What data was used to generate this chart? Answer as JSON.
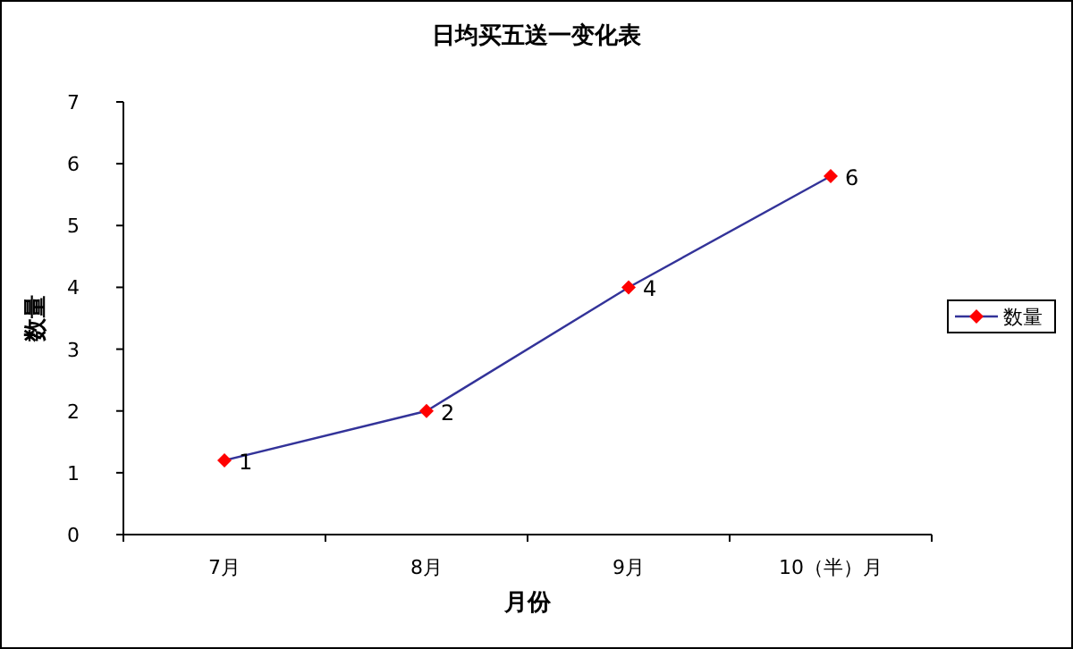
{
  "chart_data": {
    "type": "line",
    "title": "日均买五送一变化表",
    "xlabel": "月份",
    "ylabel": "数量",
    "categories": [
      "7月",
      "8月",
      "9月",
      "10（半）月"
    ],
    "series": [
      {
        "name": "数量",
        "color": "#333399",
        "colors": [
          "#ff0000",
          "#ff0000",
          "#ff0000",
          "#ff0000"
        ],
        "values": [
          1.2,
          2,
          4,
          5.8
        ],
        "value_labels": [
          "1",
          "2",
          "4",
          "6"
        ]
      }
    ],
    "ylim": [
      0,
      7
    ],
    "yticks": [
      0,
      1,
      2,
      3,
      4,
      5,
      6,
      7
    ],
    "grid": false,
    "legend": "right",
    "marker": "diamond",
    "line_style": "solid"
  }
}
